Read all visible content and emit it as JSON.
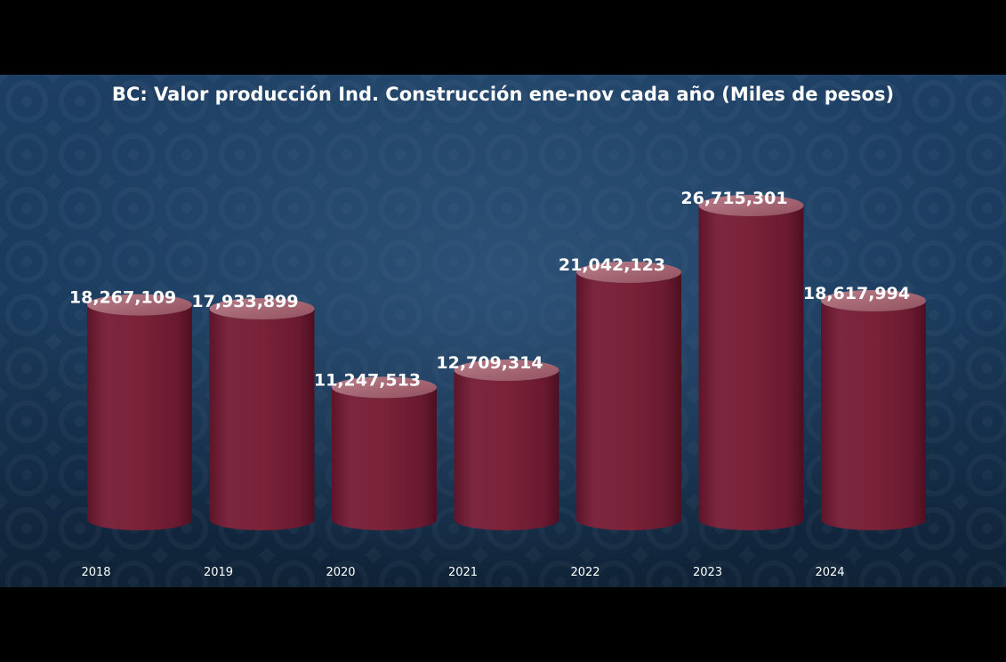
{
  "chart_data": {
    "type": "bar",
    "title": "BC: Valor producción Ind. Construcción ene-nov cada año (Miles de pesos)",
    "categories": [
      "2018",
      "2019",
      "2020",
      "2021",
      "2022",
      "2023",
      "2024"
    ],
    "values": [
      18267109,
      17933899,
      11247513,
      12709314,
      21042123,
      26715301,
      18617994
    ],
    "value_labels": [
      "18,267,109",
      "17,933,899",
      "11,247,513",
      "12,709,314",
      "21,042,123",
      "26,715,301",
      "18,617,994"
    ],
    "xlabel": "",
    "ylabel": "",
    "ylim": [
      0,
      28000000
    ],
    "grid": false,
    "legend": "none",
    "bar_color": "#7a2238",
    "bar_top_color": "#a86272"
  }
}
